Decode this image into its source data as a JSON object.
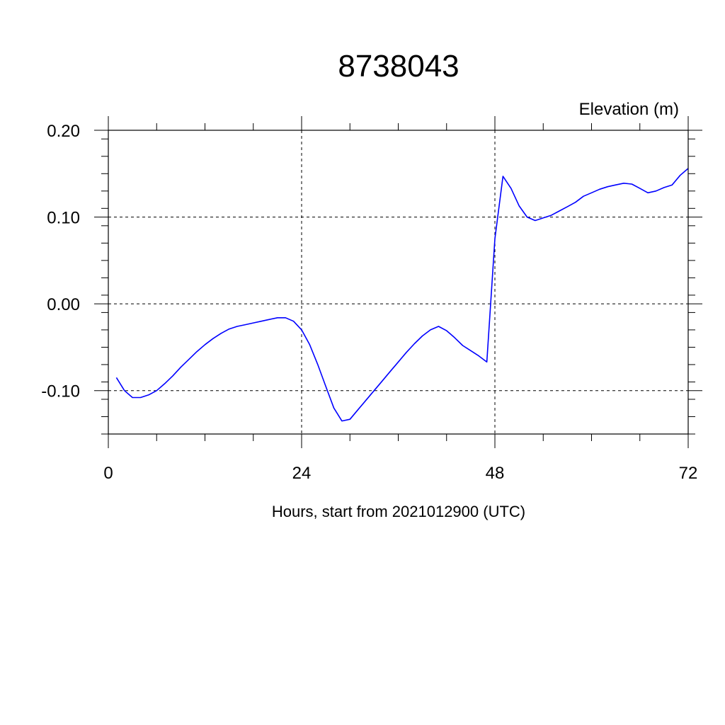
{
  "chart_data": {
    "type": "line",
    "title": "8738043",
    "ylabel": "Elevation (m)",
    "xlabel": "Hours, start from 2021012900 (UTC)",
    "xlim": [
      0,
      72
    ],
    "ylim": [
      -0.15,
      0.2
    ],
    "x_ticks": [
      0,
      24,
      48,
      72
    ],
    "x_tick_labels": [
      "0",
      "24",
      "48",
      "72"
    ],
    "y_ticks": [
      -0.1,
      0.0,
      0.1,
      0.2
    ],
    "y_tick_labels": [
      "-0.10",
      "0.00",
      "0.10",
      "0.20"
    ],
    "grid": true,
    "series": [
      {
        "color": "#0000ff",
        "x": [
          1,
          2,
          3,
          4,
          5,
          6,
          7,
          8,
          9,
          10,
          11,
          12,
          13,
          14,
          15,
          16,
          17,
          18,
          19,
          20,
          21,
          22,
          23,
          24,
          25,
          26,
          27,
          28,
          29,
          30,
          31,
          32,
          33,
          34,
          35,
          36,
          37,
          38,
          39,
          40,
          41,
          42,
          43,
          44,
          45,
          46,
          47,
          48,
          49,
          50,
          51,
          52,
          53,
          54,
          55,
          56,
          57,
          58,
          59,
          60,
          61,
          62,
          63,
          64,
          65,
          66,
          67,
          68,
          69,
          70,
          71,
          72
        ],
        "y": [
          -0.085,
          -0.1,
          -0.108,
          -0.108,
          -0.105,
          -0.1,
          -0.092,
          -0.083,
          -0.073,
          -0.064,
          -0.055,
          -0.047,
          -0.04,
          -0.034,
          -0.029,
          -0.026,
          -0.024,
          -0.022,
          -0.02,
          -0.018,
          -0.016,
          -0.016,
          -0.02,
          -0.03,
          -0.047,
          -0.07,
          -0.095,
          -0.12,
          -0.135,
          -0.133,
          -0.122,
          -0.111,
          -0.1,
          -0.089,
          -0.078,
          -0.067,
          -0.056,
          -0.046,
          -0.037,
          -0.03,
          -0.026,
          -0.031,
          -0.039,
          -0.048,
          -0.054,
          -0.06,
          -0.067,
          0.075,
          0.147,
          0.133,
          0.113,
          0.1,
          0.096,
          0.099,
          0.102,
          0.107,
          0.112,
          0.117,
          0.124,
          0.128,
          0.132,
          0.135,
          0.137,
          0.139,
          0.138,
          0.133,
          0.128,
          0.13,
          0.134,
          0.137,
          0.148,
          0.156
        ]
      }
    ]
  }
}
